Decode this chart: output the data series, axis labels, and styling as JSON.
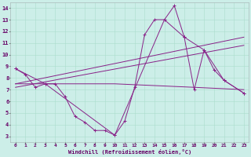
{
  "xlabel": "Windchill (Refroidissement éolien,°C)",
  "xlim": [
    -0.5,
    23.5
  ],
  "ylim": [
    2.5,
    14.5
  ],
  "xticks": [
    0,
    1,
    2,
    3,
    4,
    5,
    6,
    7,
    8,
    9,
    10,
    11,
    12,
    13,
    14,
    15,
    16,
    17,
    18,
    19,
    20,
    21,
    22,
    23
  ],
  "yticks": [
    3,
    4,
    5,
    6,
    7,
    8,
    9,
    10,
    11,
    12,
    13,
    14
  ],
  "background_color": "#cceee8",
  "line_color": "#882288",
  "grid_color": "#aaddcc",
  "series": [
    {
      "x": [
        0,
        1,
        2,
        3,
        4,
        5,
        6,
        7,
        8,
        9,
        10,
        11,
        12,
        13,
        14,
        15,
        16,
        17,
        18,
        19,
        20,
        21,
        23
      ],
      "y": [
        8.8,
        8.3,
        7.2,
        7.5,
        7.5,
        6.4,
        4.7,
        4.2,
        3.5,
        3.5,
        3.1,
        4.3,
        7.2,
        11.7,
        13.0,
        13.0,
        14.2,
        11.5,
        7.0,
        10.4,
        8.7,
        7.8,
        6.7
      ],
      "markers": true
    },
    {
      "x": [
        0,
        3,
        10,
        15,
        17,
        19,
        21,
        23
      ],
      "y": [
        8.8,
        7.5,
        3.1,
        13.0,
        11.5,
        10.4,
        7.8,
        6.7
      ],
      "markers": true
    },
    {
      "x": [
        0,
        10,
        18,
        23
      ],
      "y": [
        7.5,
        7.5,
        7.2,
        7.0
      ],
      "markers": false
    },
    {
      "x": [
        0,
        23
      ],
      "y": [
        7.2,
        10.8
      ],
      "markers": false
    },
    {
      "x": [
        0,
        23
      ],
      "y": [
        7.5,
        11.5
      ],
      "markers": false
    }
  ]
}
